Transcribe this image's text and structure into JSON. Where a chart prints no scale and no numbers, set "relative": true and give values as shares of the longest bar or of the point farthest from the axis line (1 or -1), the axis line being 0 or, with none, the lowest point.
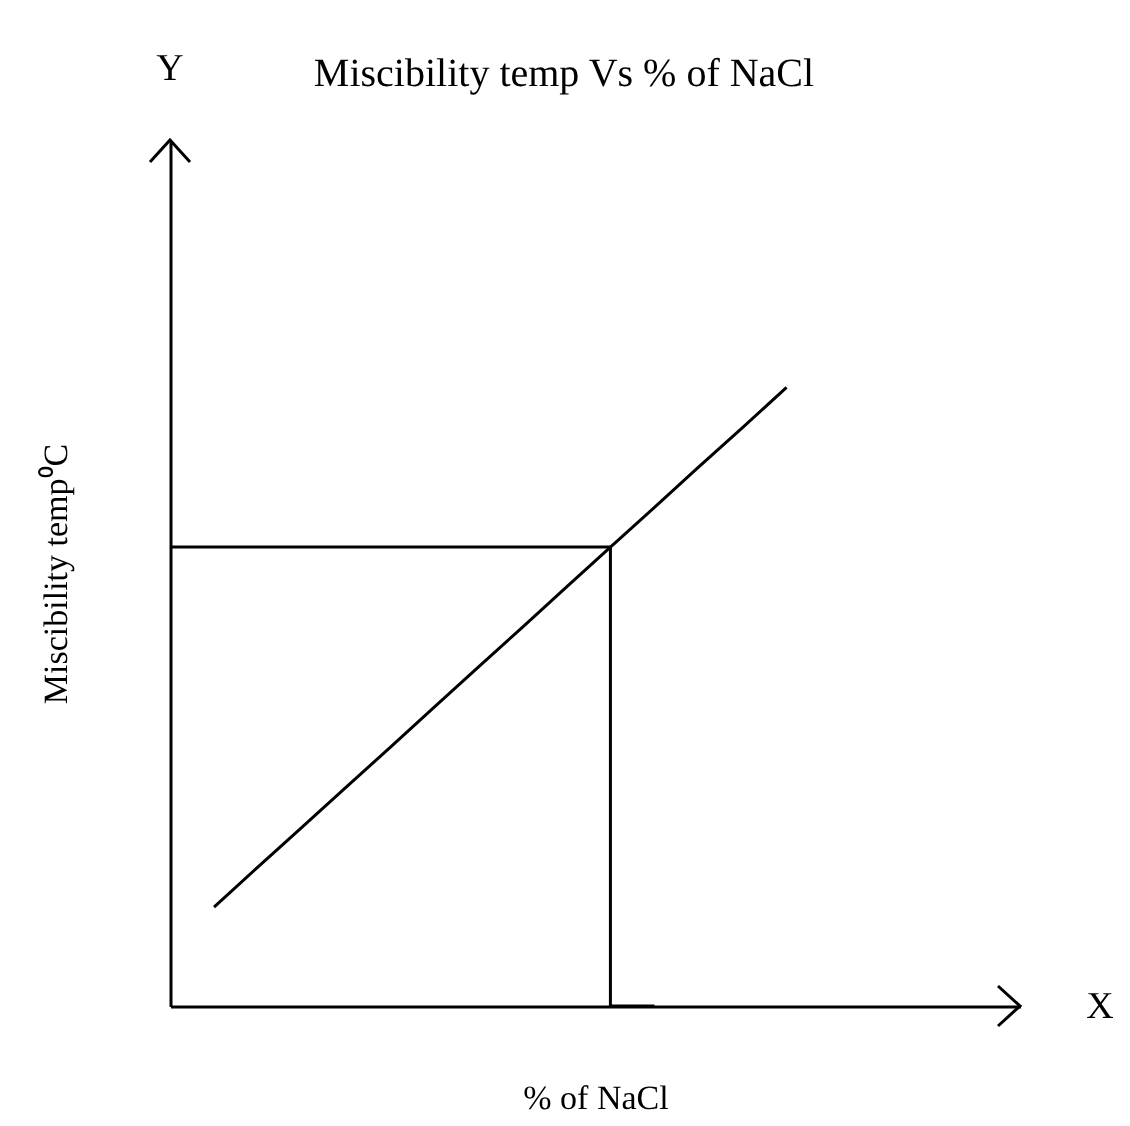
{
  "chart_data": {
    "type": "line",
    "title": "Miscibility temp Vs % of NaCl",
    "xlabel": "% of NaCl",
    "ylabel": "Miscibility temp⁰C",
    "annotations": [
      "X",
      "Y"
    ],
    "relative": true,
    "categories": [
      null,
      null,
      null,
      null,
      null,
      null,
      null,
      null,
      null,
      null,
      null,
      null,
      null,
      null,
      null,
      null,
      null,
      null,
      null,
      null
    ],
    "series": [
      {
        "color": "#000000",
        "values": [
          null,
          0.16,
          0.225,
          0.289,
          0.354,
          0.418,
          0.483,
          0.548,
          0.612,
          0.677,
          0.742,
          0.806,
          0.871,
          0.935,
          1,
          null,
          null,
          null,
          null,
          null
        ]
      },
      {
        "type": "step",
        "color": "#000000",
        "values": [
          0.742,
          0.742,
          0.742,
          0.742,
          0.742,
          0.742,
          0.742,
          0.742,
          0.742,
          0.742,
          0.742,
          0,
          null,
          null,
          null,
          null,
          null,
          null,
          null,
          null
        ]
      }
    ]
  }
}
